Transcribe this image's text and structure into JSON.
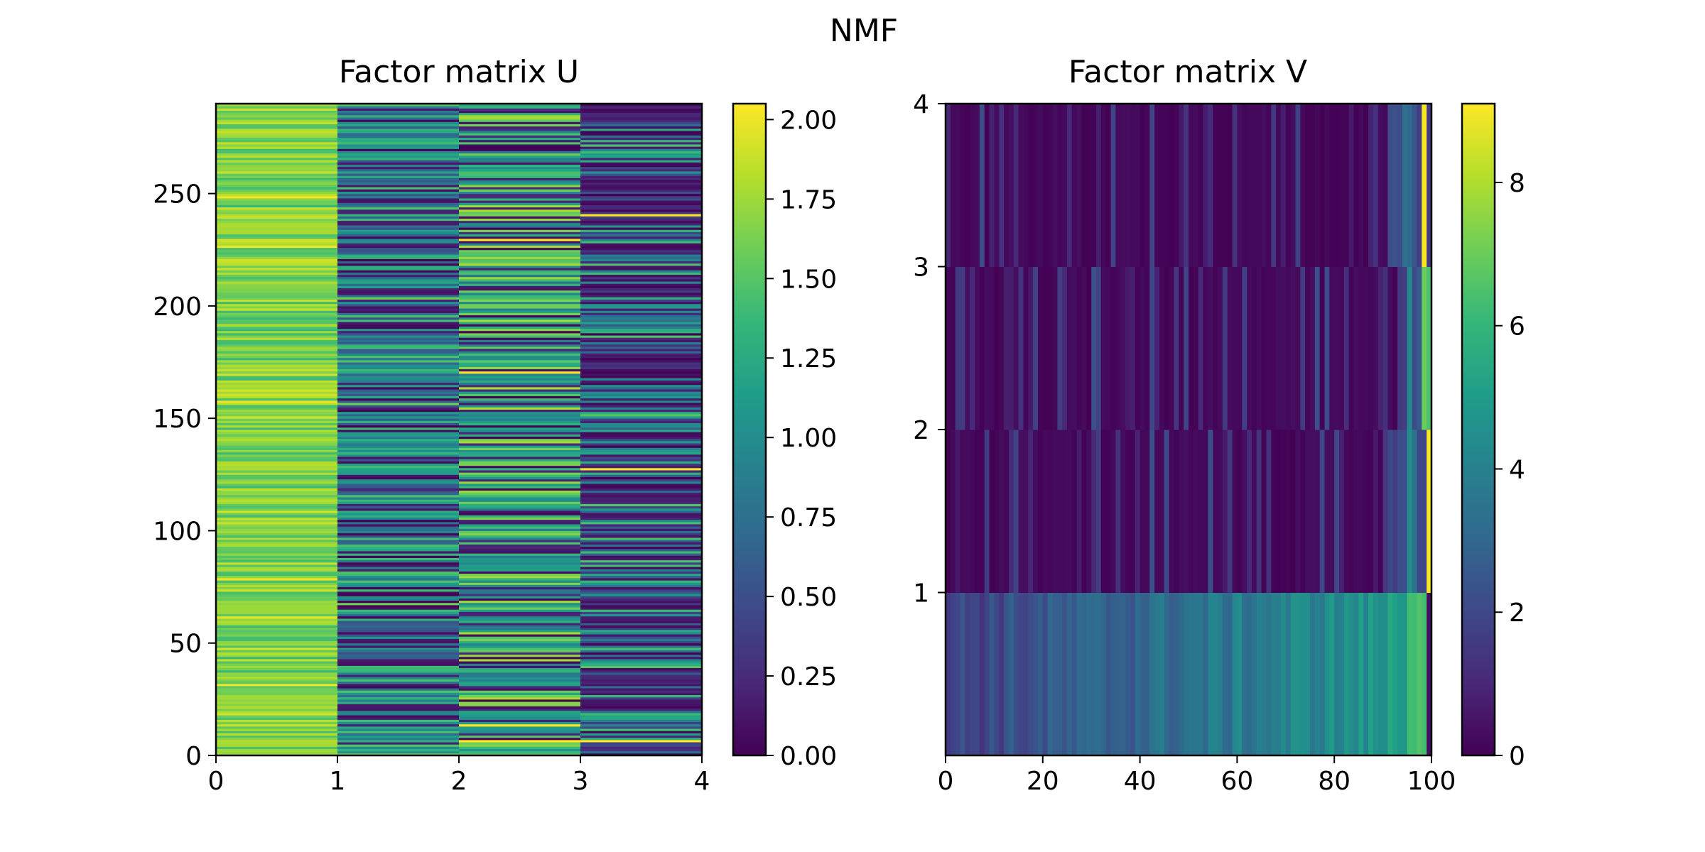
{
  "figure": {
    "title": "NMF"
  },
  "colormap": [
    "#440154",
    "#482878",
    "#3e4989",
    "#31688e",
    "#26828e",
    "#1f9e89",
    "#35b779",
    "#6ece58",
    "#b5de2b",
    "#fde725"
  ],
  "chart_data": [
    {
      "type": "heatmap",
      "title": "Factor matrix U",
      "xlabel": "",
      "ylabel": "",
      "columns": 4,
      "rows": 290,
      "xlim": [
        0,
        4
      ],
      "ylim": [
        0,
        290
      ],
      "x_ticks": [
        "0",
        "1",
        "2",
        "3",
        "4"
      ],
      "y_ticks": [
        "0",
        "50",
        "100",
        "150",
        "200",
        "250"
      ],
      "colorbar": {
        "min": 0.0,
        "max": 2.05,
        "ticks": [
          "0.00",
          "0.25",
          "0.50",
          "0.75",
          "1.00",
          "1.25",
          "1.50",
          "1.75",
          "2.00"
        ]
      },
      "columns_summary": [
        {
          "column": 0,
          "typical_value": 1.65,
          "range": [
            1.2,
            2.0
          ]
        },
        {
          "column": 1,
          "typical_value": 0.85,
          "range": [
            0.0,
            1.6
          ]
        },
        {
          "column": 2,
          "typical_value": 1.2,
          "range": [
            0.0,
            2.05
          ]
        },
        {
          "column": 3,
          "typical_value": 0.6,
          "range": [
            0.0,
            2.05
          ]
        }
      ]
    },
    {
      "type": "heatmap",
      "title": "Factor matrix V",
      "xlabel": "",
      "ylabel": "",
      "columns": 100,
      "rows": 4,
      "xlim": [
        0,
        100
      ],
      "ylim": [
        0,
        4
      ],
      "x_ticks": [
        "0",
        "20",
        "40",
        "60",
        "80",
        "100"
      ],
      "y_ticks": [
        "1",
        "2",
        "3",
        "4"
      ],
      "colorbar": {
        "min": 0,
        "max": 9.1,
        "ticks": [
          "0",
          "2",
          "4",
          "6",
          "8"
        ]
      },
      "rows_summary": [
        {
          "row": 0,
          "typical_value": 3.0,
          "range": [
            1.5,
            6.5
          ]
        },
        {
          "row": 1,
          "typical_value": 0.2,
          "range": [
            0,
            9.0
          ],
          "peak_column": 99
        },
        {
          "row": 2,
          "typical_value": 0.2,
          "range": [
            0,
            7.0
          ],
          "peak_column": 98
        },
        {
          "row": 3,
          "typical_value": 0.3,
          "range": [
            0,
            9.0
          ],
          "peak_column": 98
        }
      ]
    }
  ]
}
